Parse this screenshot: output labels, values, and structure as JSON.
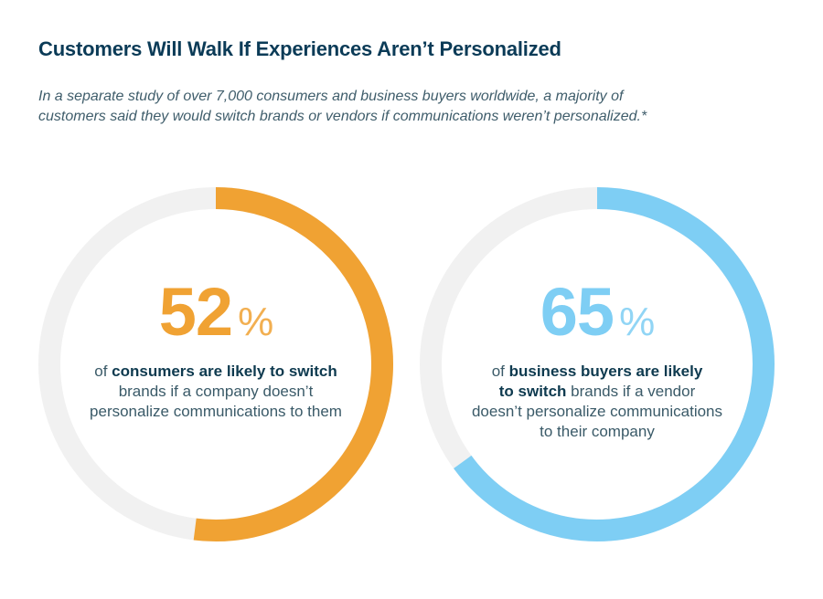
{
  "header": {
    "title": "Customers Will Walk If Experiences Aren’t Personalized",
    "subtitle_lines": [
      "In a separate study of over 7,000 consumers and business buyers worldwide, a majority of",
      "customers said they would switch brands or vendors if communications weren’t personalized.*"
    ]
  },
  "colors": {
    "title": "#0b3b57",
    "track": "#f1f1f1",
    "consumers": "#f0a233",
    "business": "#7ecef4"
  },
  "chart_data": [
    {
      "type": "pie",
      "subtype": "donut-progress",
      "name": "consumers",
      "value": 52,
      "max": 100,
      "value_label": "52",
      "unit": "%",
      "color": "#f0a233",
      "description_lines": [
        [
          {
            "text": "of ",
            "bold": false
          },
          {
            "text": "consumers are likely to switch",
            "bold": true
          }
        ],
        [
          {
            "text": "brands if a company doesn’t",
            "bold": false
          }
        ],
        [
          {
            "text": "personalize communications to them",
            "bold": false
          }
        ]
      ]
    },
    {
      "type": "pie",
      "subtype": "donut-progress",
      "name": "business buyers",
      "value": 65,
      "max": 100,
      "value_label": "65",
      "unit": "%",
      "color": "#7ecef4",
      "description_lines": [
        [
          {
            "text": "of ",
            "bold": false
          },
          {
            "text": "business buyers are likely",
            "bold": true
          }
        ],
        [
          {
            "text": "to switch",
            "bold": true
          },
          {
            "text": " brands if a vendor",
            "bold": false
          }
        ],
        [
          {
            "text": "doesn’t personalize communications",
            "bold": false
          }
        ],
        [
          {
            "text": "to their company",
            "bold": false
          }
        ]
      ]
    }
  ]
}
